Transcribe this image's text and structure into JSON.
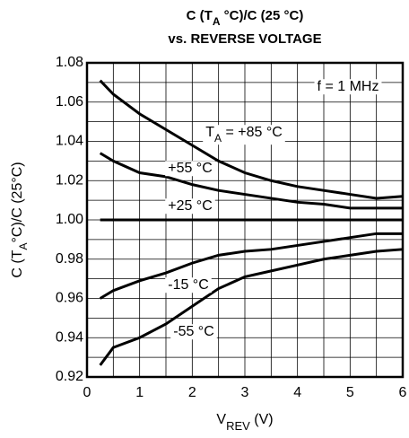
{
  "chart_data": {
    "type": "line",
    "title": [
      "C (T",
      "A",
      " °C)/C (25 °C)"
    ],
    "subtitle": "vs. REVERSE VOLTAGE",
    "y_label": [
      "C (T",
      "A",
      "°C)/C (25°C)"
    ],
    "x_label": [
      "V",
      "REV",
      " (V)"
    ],
    "x": [
      0.25,
      0.5,
      1,
      1.5,
      2,
      2.5,
      3,
      3.5,
      4,
      4.5,
      5,
      5.5,
      6
    ],
    "series": [
      {
        "color": "#000000",
        "values": [
          1.071,
          1.064,
          1.054,
          1.046,
          1.038,
          1.03,
          1.024,
          1.02,
          1.017,
          1.015,
          1.013,
          1.011,
          1.012
        ]
      },
      {
        "color": "#000000",
        "values": [
          1.034,
          1.03,
          1.024,
          1.022,
          1.018,
          1.015,
          1.013,
          1.011,
          1.009,
          1.008,
          1.006,
          1.006,
          1.006
        ]
      },
      {
        "color": "#000000",
        "values": [
          1,
          1,
          1,
          1,
          1,
          1,
          1,
          1,
          1,
          1,
          1,
          1,
          1
        ]
      },
      {
        "color": "#000000",
        "values": [
          0.96,
          0.964,
          0.969,
          0.973,
          0.978,
          0.982,
          0.984,
          0.985,
          0.987,
          0.989,
          0.991,
          0.993,
          0.993
        ]
      },
      {
        "color": "#000000",
        "values": [
          0.926,
          0.935,
          0.94,
          0.947,
          0.956,
          0.965,
          0.971,
          0.974,
          0.977,
          0.98,
          0.982,
          0.984,
          0.985
        ]
      }
    ],
    "annotations": [
      [
        "f = 1 MHz"
      ],
      [
        "T",
        "A",
        " = +85 °C"
      ],
      [
        "+55 °C"
      ],
      [
        "+25 °C"
      ],
      [
        "-15 °C"
      ],
      [
        "-55 °C"
      ]
    ],
    "xlim": [
      0,
      6
    ],
    "ylim": [
      0.92,
      1.08
    ],
    "xticks": [
      0,
      1,
      2,
      3,
      4,
      5,
      6
    ],
    "yticks": [
      0.92,
      0.94,
      0.96,
      0.98,
      {
        "value": 1,
        "label": "1.00"
      },
      1.02,
      1.04,
      1.06,
      1.08
    ],
    "minor_xticks": [
      0.5,
      1.5,
      2.5,
      3.5,
      4.5,
      5.5
    ],
    "minor_yticks": [
      0.93,
      0.95,
      0.97,
      0.99,
      1.01,
      1.03,
      1.05,
      1.07
    ],
    "grid": true
  }
}
